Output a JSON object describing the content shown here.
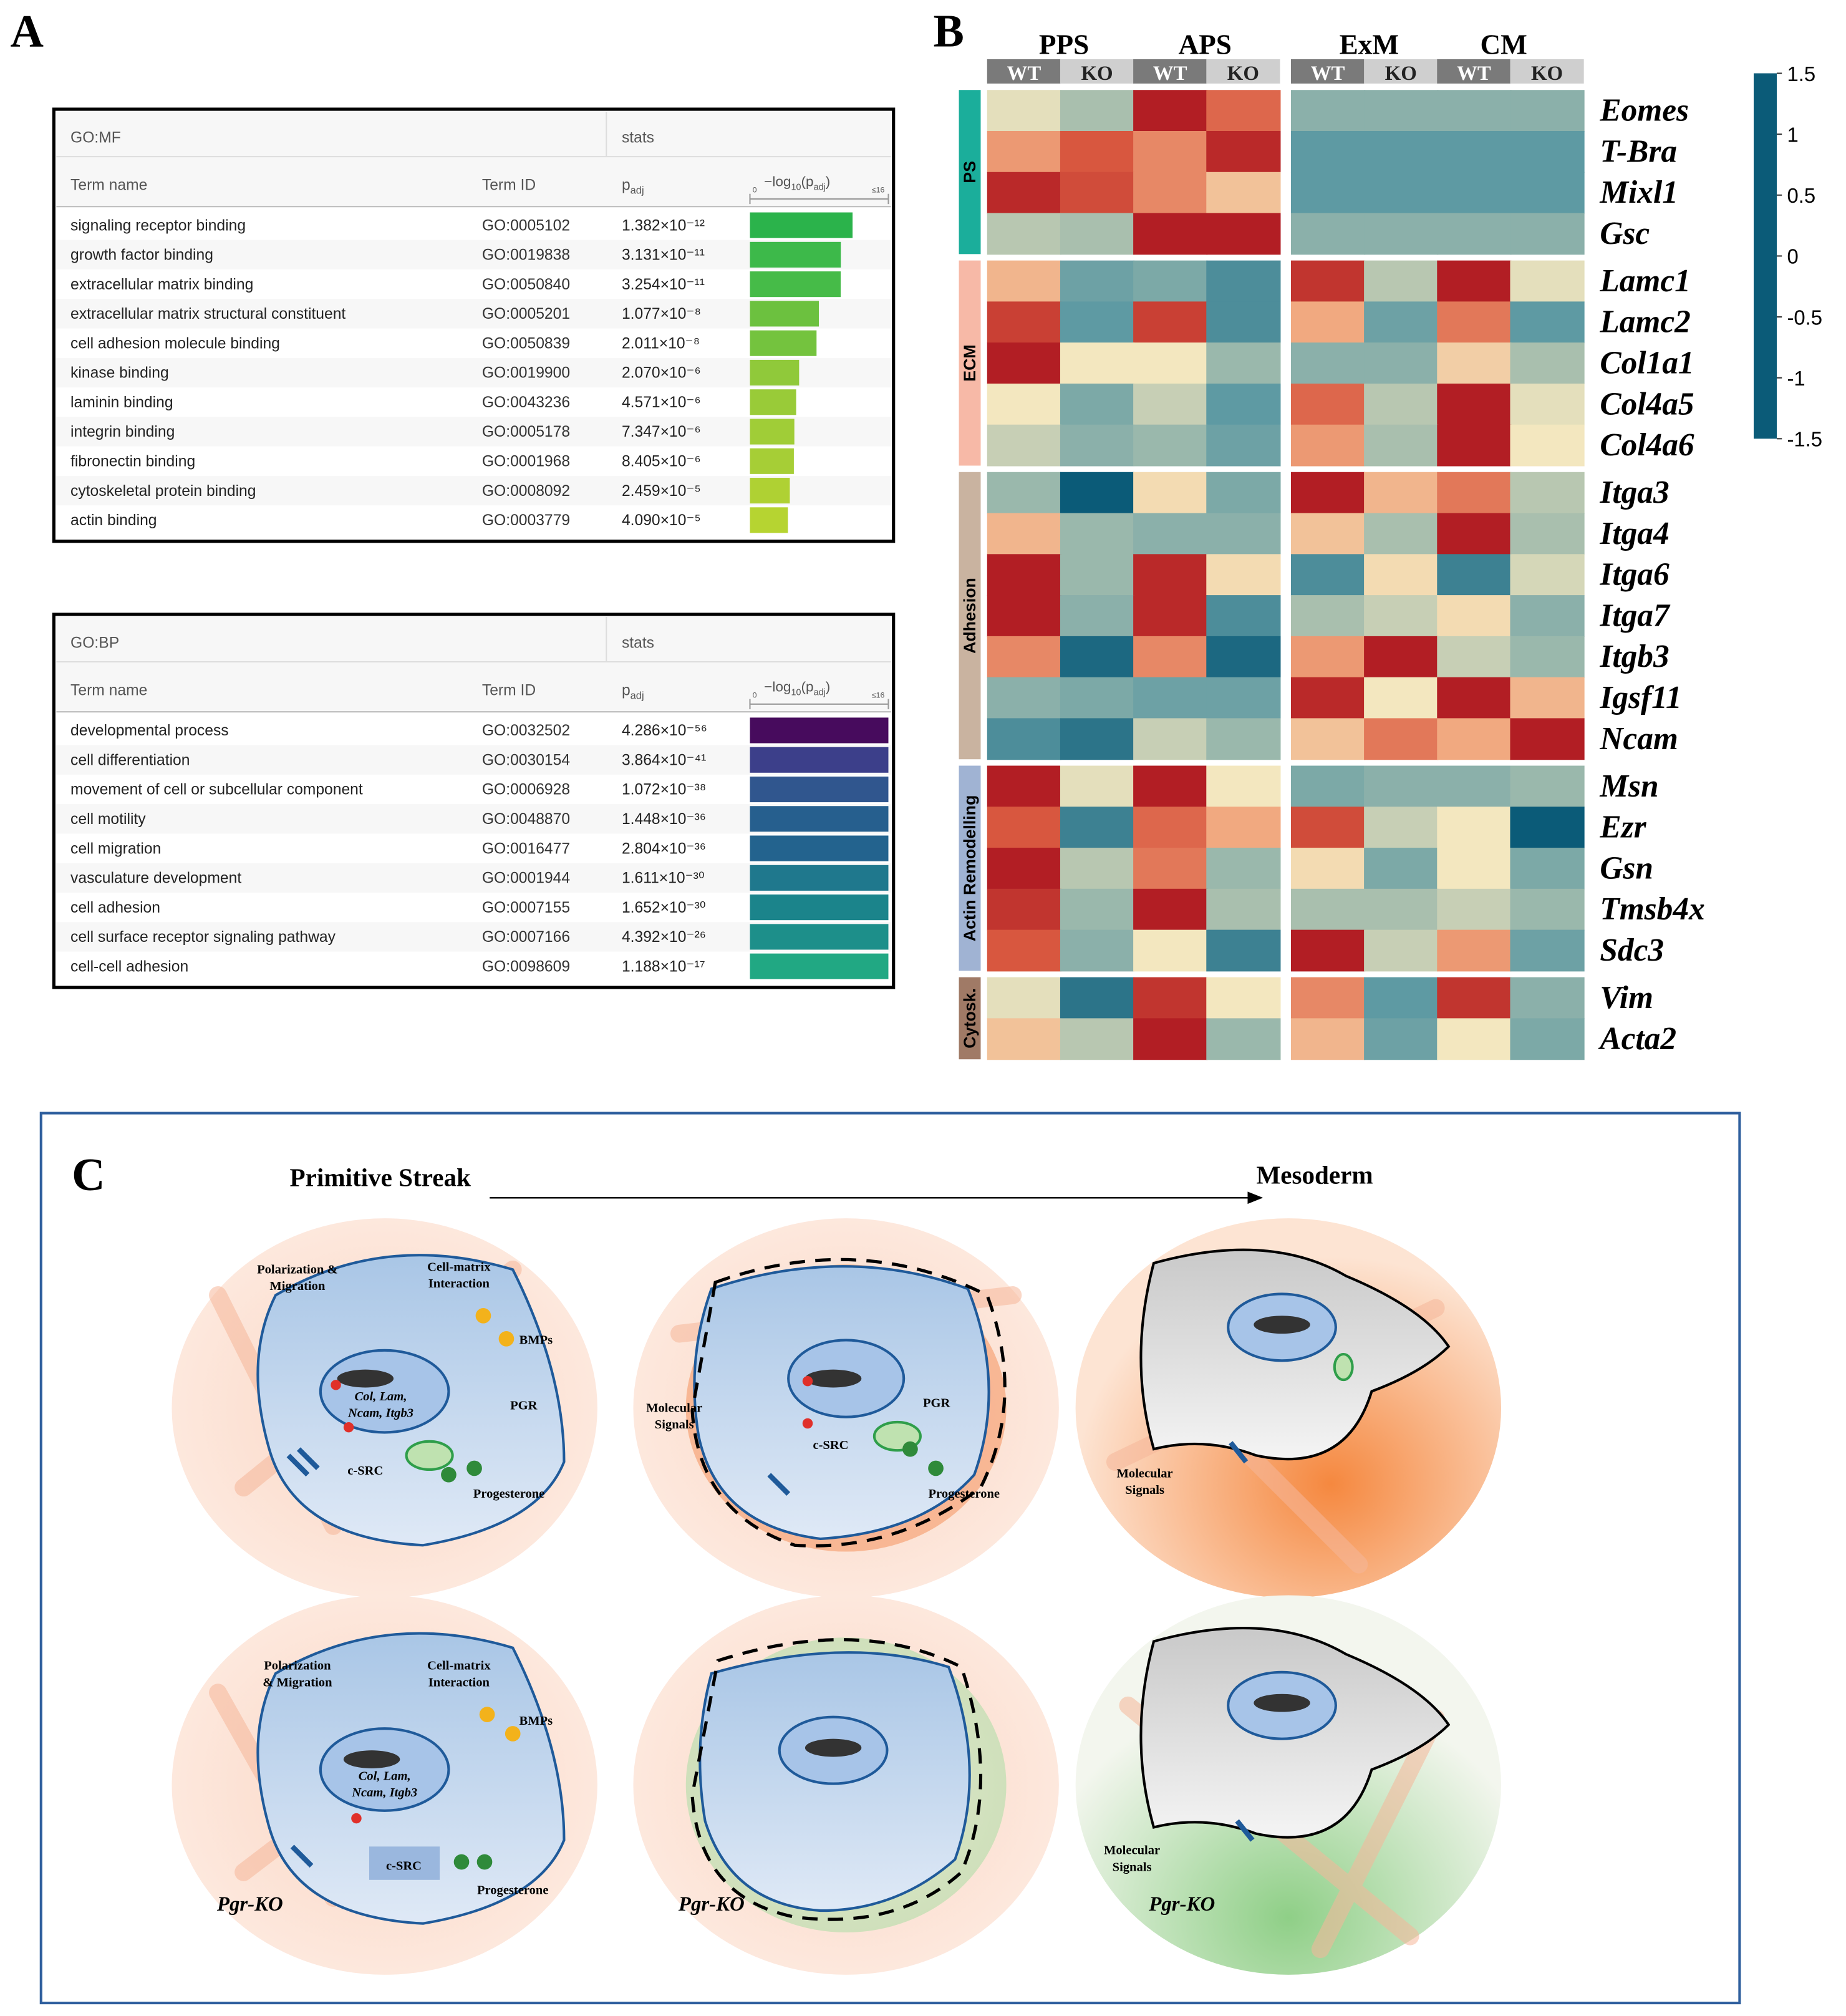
{
  "panel_a": {
    "label": "A",
    "axis_label": {
      "parts": [
        "−log",
        "10",
        "(p",
        "adj",
        ")"
      ]
    },
    "axis_min": 0,
    "axis_max": {
      "value": 16,
      "label": "≤16"
    },
    "stats": "stats",
    "headers": {
      "term": "Term name",
      "id": "Term ID",
      "p": {
        "main": "p",
        "sub": "adj"
      }
    },
    "tables": [
      {
        "title": "GO:MF",
        "rows": [
          {
            "term": "signaling receptor binding",
            "id": "GO:0005102",
            "p": "1.382×10⁻¹²",
            "color": "#2bb34b"
          },
          {
            "term": "growth factor binding",
            "id": "GO:0019838",
            "p": "3.131×10⁻¹¹",
            "color": "#3db94a"
          },
          {
            "term": "extracellular matrix binding",
            "id": "GO:0050840",
            "p": "3.254×10⁻¹¹",
            "color": "#46bb48"
          },
          {
            "term": "extracellular matrix structural constituent",
            "id": "GO:0005201",
            "p": "1.077×10⁻⁸",
            "color": "#6cc13f"
          },
          {
            "term": "cell adhesion molecule binding",
            "id": "GO:0050839",
            "p": "2.011×10⁻⁸",
            "color": "#74c33e"
          },
          {
            "term": "kinase binding",
            "id": "GO:0019900",
            "p": "2.070×10⁻⁶",
            "color": "#90c93a"
          },
          {
            "term": "laminin binding",
            "id": "GO:0043236",
            "p": "4.571×10⁻⁶",
            "color": "#99cb38"
          },
          {
            "term": "integrin binding",
            "id": "GO:0005178",
            "p": "7.347×10⁻⁶",
            "color": "#a0cd37"
          },
          {
            "term": "fibronectin binding",
            "id": "GO:0001968",
            "p": "8.405×10⁻⁶",
            "color": "#a6ce36"
          },
          {
            "term": "cytoskeletal protein binding",
            "id": "GO:0008092",
            "p": "2.459×10⁻⁵",
            "color": "#afd133"
          },
          {
            "term": "actin binding",
            "id": "GO:0003779",
            "p": "4.090×10⁻⁵",
            "color": "#b6d431"
          }
        ]
      },
      {
        "title": "GO:BP",
        "rows": [
          {
            "term": "developmental process",
            "id": "GO:0032502",
            "p": "4.286×10⁻⁵⁶",
            "color": "#470b5d"
          },
          {
            "term": "cell differentiation",
            "id": "GO:0030154",
            "p": "3.864×10⁻⁴¹",
            "color": "#3c3f8a"
          },
          {
            "term": "movement of cell or subcellular component",
            "id": "GO:0006928",
            "p": "1.072×10⁻³⁸",
            "color": "#30568e"
          },
          {
            "term": "cell motility",
            "id": "GO:0048870",
            "p": "1.448×10⁻³⁶",
            "color": "#265f8e"
          },
          {
            "term": "cell migration",
            "id": "GO:0016477",
            "p": "2.804×10⁻³⁶",
            "color": "#23638e"
          },
          {
            "term": "vasculature development",
            "id": "GO:0001944",
            "p": "1.611×10⁻³⁰",
            "color": "#1f788d"
          },
          {
            "term": "cell adhesion",
            "id": "GO:0007155",
            "p": "1.652×10⁻³⁰",
            "color": "#1b848b"
          },
          {
            "term": "cell surface receptor signaling pathway",
            "id": "GO:0007166",
            "p": "4.392×10⁻²⁶",
            "color": "#1d8f8a"
          },
          {
            "term": "cell-cell adhesion",
            "id": "GO:0098609",
            "p": "1.188×10⁻¹⁷",
            "color": "#21a883"
          }
        ]
      }
    ]
  },
  "panel_b": {
    "label": "B",
    "type": "heatmap",
    "column_groups": [
      "PPS",
      "APS",
      "ExM",
      "CM"
    ],
    "columns": [
      "WT",
      "KO",
      "WT",
      "KO",
      "WT",
      "KO",
      "WT",
      "KO"
    ],
    "row_groups": [
      {
        "name": "PS",
        "color": "#1bae9b",
        "size": 4
      },
      {
        "name": "ECM",
        "color": "#f7b9a7",
        "size": 5
      },
      {
        "name": "Adhesion",
        "color": "#c9b3a0",
        "size": 7
      },
      {
        "name": "Actin Remodelling",
        "color": "#a0b3d3",
        "size": 5
      },
      {
        "name": "Cytosk.",
        "color": "#a07a66",
        "size": 2
      }
    ],
    "genes": [
      "Eomes",
      "T-Bra",
      "Mixl1",
      "Gsc",
      "Lamc1",
      "Lamc2",
      "Col1a1",
      "Col4a5",
      "Col4a6",
      "Itga3",
      "Itga4",
      "Itga6",
      "Itga7",
      "Itgb3",
      "Igsf11",
      "Ncam",
      "Msn",
      "Ezr",
      "Gsn",
      "Tmsb4x",
      "Sdc3",
      "Vim",
      "Acta2"
    ],
    "values": [
      [
        -0.1,
        -0.5,
        1.5,
        0.9,
        -0.7,
        -0.7,
        -0.7,
        -0.7
      ],
      [
        0.6,
        1.0,
        0.7,
        1.4,
        -1.0,
        -1.0,
        -1.0,
        -1.0
      ],
      [
        1.4,
        1.1,
        0.7,
        0.3,
        -1.0,
        -1.0,
        -1.0,
        -1.0
      ],
      [
        -0.4,
        -0.5,
        1.5,
        1.5,
        -0.7,
        -0.7,
        -0.7,
        -0.7
      ],
      [
        0.4,
        -0.9,
        -0.8,
        -1.1,
        1.3,
        -0.4,
        1.5,
        -0.1
      ],
      [
        1.2,
        -1.0,
        1.2,
        -1.1,
        0.5,
        -0.9,
        0.8,
        -1.0
      ],
      [
        1.5,
        0.0,
        0.0,
        -0.6,
        -0.7,
        -0.7,
        0.2,
        -0.5
      ],
      [
        0.0,
        -0.8,
        -0.3,
        -1.0,
        0.9,
        -0.4,
        1.5,
        -0.1
      ],
      [
        -0.3,
        -0.7,
        -0.6,
        -0.9,
        0.6,
        -0.5,
        1.5,
        0.0
      ],
      [
        -0.6,
        -1.5,
        0.1,
        -0.8,
        1.5,
        0.4,
        0.8,
        -0.4
      ],
      [
        0.4,
        -0.6,
        -0.7,
        -0.7,
        0.3,
        -0.5,
        1.5,
        -0.5
      ],
      [
        1.5,
        -0.6,
        1.4,
        0.1,
        -1.1,
        0.1,
        -1.2,
        -0.2
      ],
      [
        1.5,
        -0.7,
        1.4,
        -1.1,
        -0.5,
        -0.3,
        0.1,
        -0.7
      ],
      [
        0.7,
        -1.4,
        0.7,
        -1.4,
        0.6,
        1.5,
        -0.3,
        -0.6
      ],
      [
        -0.7,
        -0.8,
        -0.9,
        -0.9,
        1.4,
        0.0,
        1.5,
        0.4
      ],
      [
        -1.1,
        -1.3,
        -0.3,
        -0.6,
        0.3,
        0.8,
        0.5,
        1.5
      ],
      [
        1.5,
        -0.1,
        1.5,
        0.0,
        -0.8,
        -0.7,
        -0.7,
        -0.6
      ],
      [
        1.0,
        -1.2,
        0.9,
        0.5,
        1.1,
        -0.3,
        0.0,
        -1.5
      ],
      [
        1.5,
        -0.4,
        0.8,
        -0.6,
        0.1,
        -0.8,
        0.0,
        -0.8
      ],
      [
        1.3,
        -0.6,
        1.5,
        -0.5,
        -0.5,
        -0.5,
        -0.3,
        -0.6
      ],
      [
        1.0,
        -0.7,
        0.0,
        -1.2,
        1.5,
        -0.3,
        0.6,
        -0.9
      ],
      [
        -0.1,
        -1.3,
        1.3,
        0.0,
        0.7,
        -1.0,
        1.3,
        -0.7
      ],
      [
        0.3,
        -0.4,
        1.5,
        -0.6,
        0.4,
        -0.9,
        0.0,
        -0.8
      ]
    ],
    "clim": [
      -1.5,
      1.5
    ],
    "colormap": [
      "#0b5b78",
      "#5e9aa3",
      "#a9bfae",
      "#f3e7bf",
      "#f1a980",
      "#d8573f",
      "#b21e24"
    ],
    "cticks": [
      1.5,
      1,
      0.5,
      0,
      -0.5,
      -1,
      -1.5
    ]
  },
  "panel_c": {
    "label": "C",
    "stage_start": "Primitive Streak",
    "stage_end": "Mesoderm",
    "annotations": [
      {
        "lines": [
          "Polarization &",
          "Migration"
        ]
      },
      {
        "lines": [
          "Cell-matrix",
          "Interaction"
        ]
      },
      {
        "lines": [
          "BMPs"
        ]
      },
      {
        "lines": [
          "Col, Lam,",
          "Ncam, Itgb3"
        ]
      },
      {
        "lines": [
          "PGR"
        ]
      },
      {
        "lines": [
          "c-SRC"
        ]
      },
      {
        "lines": [
          "Progesterone"
        ]
      },
      {
        "lines": [
          "Molecular",
          "Signals"
        ]
      },
      {
        "lines": [
          "PGR"
        ]
      },
      {
        "lines": [
          "c-SRC"
        ]
      },
      {
        "lines": [
          "Progesterone"
        ]
      },
      {
        "lines": [
          "Molecular",
          "Signals"
        ]
      },
      {
        "lines": [
          "Polarization",
          "& Migration"
        ]
      },
      {
        "lines": [
          "Cell-matrix",
          "Interaction"
        ]
      },
      {
        "lines": [
          "BMPs"
        ]
      },
      {
        "lines": [
          "Col, Lam,",
          "Ncam, Itgb3"
        ]
      },
      {
        "lines": [
          "c-SRC"
        ]
      },
      {
        "lines": [
          "Progesterone"
        ]
      },
      {
        "lines": [
          "Molecular",
          "Signals"
        ]
      },
      {
        "lines": [
          "Pgr-KO"
        ]
      },
      {
        "lines": [
          "Pgr-KO"
        ]
      },
      {
        "lines": [
          "Pgr-KO"
        ]
      }
    ]
  }
}
